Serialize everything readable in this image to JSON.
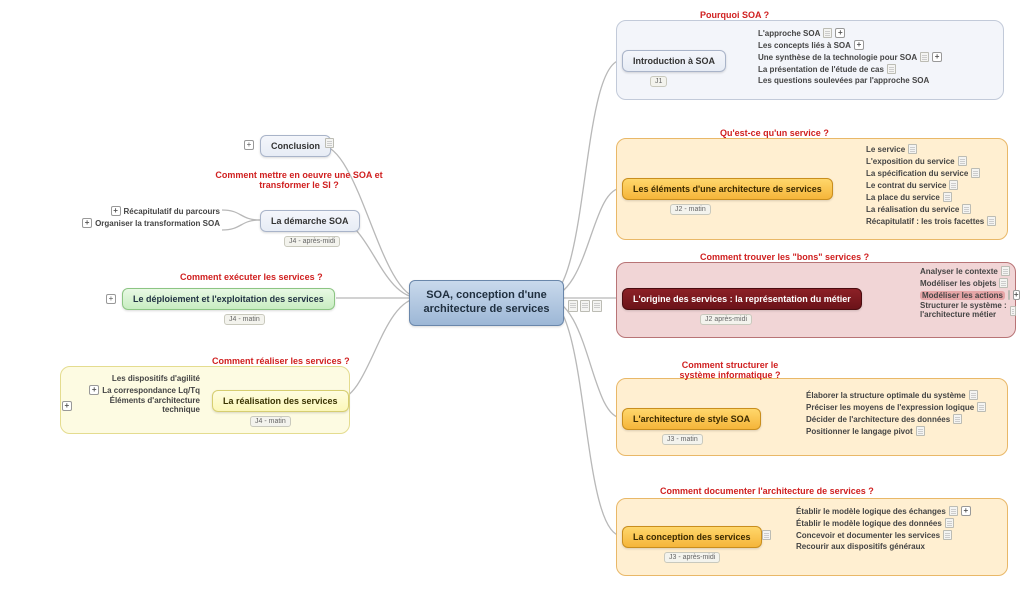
{
  "center": {
    "title": "SOA, conception d'une architecture de services"
  },
  "colors": {
    "connector": "#b8b8b8",
    "group_orange_bg": "#ffefd1",
    "group_orange_border": "#e9b868",
    "group_pink_bg": "#f1d5d6",
    "group_pink_border": "#b87476",
    "group_yellow_bg": "#fdfbe2",
    "group_yellow_border": "#e4dc8f",
    "group_blue_bg": "#f3f5fa",
    "group_blue_border": "#c2cad9",
    "caption_red": "#d02020"
  },
  "right": [
    {
      "id": "intro",
      "caption": "Pourquoi SOA ?",
      "node_label": "Introduction à SOA",
      "node_style": "blue-node",
      "group_style": "group-blue",
      "tag": "J1",
      "leaves": [
        {
          "text": "L'approche SOA",
          "note": true,
          "expand": true
        },
        {
          "text": "Les concepts liés à SOA",
          "expand": true
        },
        {
          "text": "Une synthèse de la technologie pour SOA",
          "note": true,
          "expand": true
        },
        {
          "text": "La présentation de l'étude de cas",
          "note": true
        },
        {
          "text": "Les questions soulevées par l'approche SOA"
        }
      ]
    },
    {
      "id": "elements",
      "caption": "Qu'est-ce qu'un service ?",
      "node_label": "Les éléments d'une architecture de services",
      "node_style": "orange-node",
      "group_style": "group-orange",
      "tag": "J2 - matin",
      "leaves": [
        {
          "text": "Le service",
          "note": true
        },
        {
          "text": "L'exposition du service",
          "note": true
        },
        {
          "text": "La spécification du service",
          "note": true
        },
        {
          "text": "Le contrat du service",
          "note": true
        },
        {
          "text": "La place du service",
          "note": true
        },
        {
          "text": "La réalisation du service",
          "note": true
        },
        {
          "text": "Récapitulatif : les trois facettes",
          "note": true
        }
      ]
    },
    {
      "id": "origine",
      "caption": "Comment trouver les \"bons\" services ?",
      "node_label": "L'origine des services : la représentation du métier",
      "node_style": "red-node",
      "group_style": "group-pink",
      "tag": "J2 après-midi",
      "leaves": [
        {
          "text": "Analyser le contexte",
          "note": true
        },
        {
          "text": "Modéliser les objets",
          "note": true
        },
        {
          "text": "Modéliser les actions",
          "note": true,
          "expand": true,
          "highlight": true
        },
        {
          "text": "Structurer le système : l'architecture métier",
          "note": true,
          "wrap": true
        }
      ]
    },
    {
      "id": "archi",
      "caption": "Comment structurer le système informatique ?",
      "node_label": "L'architecture de style SOA",
      "node_style": "orange-node",
      "group_style": "group-orange",
      "tag": "J3 - matin",
      "leaves": [
        {
          "text": "Élaborer la structure optimale du système",
          "note": true
        },
        {
          "text": "Préciser les moyens de l'expression logique",
          "note": true
        },
        {
          "text": "Décider de l'architecture des données",
          "note": true
        },
        {
          "text": "Positionner le langage pivot",
          "note": true
        }
      ]
    },
    {
      "id": "conception",
      "caption": "Comment documenter l'architecture de services ?",
      "node_label": "La conception des services",
      "node_style": "orange-node",
      "group_style": "group-orange",
      "tag": "J3 - après-midi",
      "leaves": [
        {
          "text": "Établir le modèle logique des échanges",
          "note": true,
          "expand": true
        },
        {
          "text": "Établir le modèle logique des données",
          "note": true
        },
        {
          "text": "Concevoir et documenter les services",
          "note": true
        },
        {
          "text": "Recourir aux dispositifs généraux"
        }
      ]
    }
  ],
  "left": [
    {
      "id": "conclusion",
      "caption": "",
      "node_label": "Conclusion",
      "node_style": "blue-node",
      "group_style": "",
      "tag": "",
      "expand_left": true,
      "note_right": true,
      "leaves": []
    },
    {
      "id": "demarche",
      "caption": "Comment mettre en oeuvre une SOA et transformer le SI ?",
      "node_label": "La démarche SOA",
      "node_style": "blue-node",
      "group_style": "",
      "tag": "J4 - après-midi",
      "leaves": [
        {
          "text": "Récapitulatif du parcours",
          "expand": true
        },
        {
          "text": "Organiser la transformation SOA",
          "expand": true
        }
      ]
    },
    {
      "id": "deploiement",
      "caption": "Comment exécuter les services ?",
      "node_label": "Le déploiement et l'exploitation des services",
      "node_style": "green-node",
      "group_style": "",
      "tag": "J4 - matin",
      "expand_left": true,
      "leaves": []
    },
    {
      "id": "realisation",
      "caption": "Comment réaliser les services ?",
      "node_label": "La réalisation des services",
      "node_style": "yellow-node",
      "group_style": "group-yellow",
      "tag": "J4 - matin",
      "leaves": [
        {
          "text": "Les dispositifs d'agilité"
        },
        {
          "text": "La correspondance Lq/Tq",
          "expand": true
        },
        {
          "text": "Éléments d'architecture technique",
          "expand": true,
          "wrap": true
        }
      ]
    }
  ]
}
